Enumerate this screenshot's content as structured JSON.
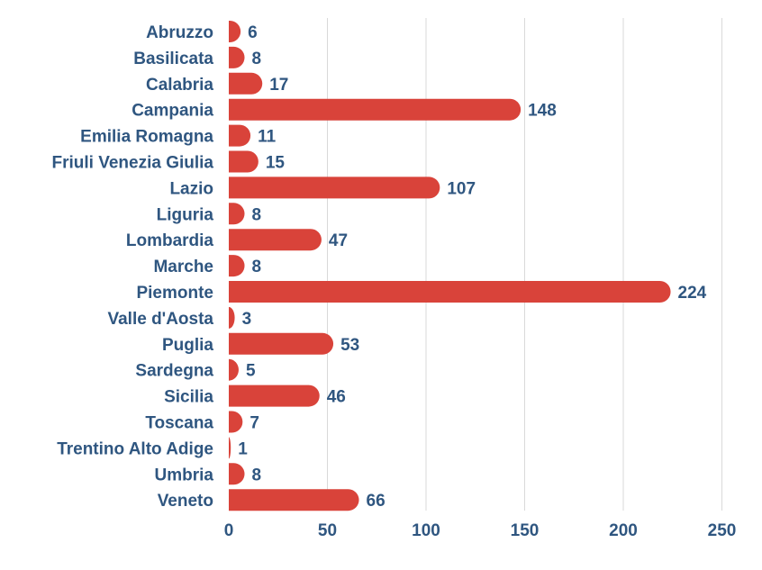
{
  "chart_data": {
    "type": "bar",
    "orientation": "horizontal",
    "categories": [
      "Abruzzo",
      "Basilicata",
      "Calabria",
      "Campania",
      "Emilia Romagna",
      "Friuli Venezia Giulia",
      "Lazio",
      "Liguria",
      "Lombardia",
      "Marche",
      "Piemonte",
      "Valle d'Aosta",
      "Puglia",
      "Sardegna",
      "Sicilia",
      "Toscana",
      "Trentino Alto Adige",
      "Umbria",
      "Veneto"
    ],
    "values": [
      6,
      8,
      17,
      148,
      11,
      15,
      107,
      8,
      47,
      8,
      224,
      3,
      53,
      5,
      46,
      7,
      1,
      8,
      66
    ],
    "value_labels": [
      "6",
      "8",
      "17",
      "148",
      "11",
      "15",
      "107",
      "8",
      "47",
      "8",
      "224",
      "3",
      "53",
      "5",
      "46",
      "7",
      "1",
      "8",
      "66"
    ],
    "xlim": [
      0,
      250
    ],
    "x_ticks": [
      0,
      50,
      100,
      150,
      200,
      250
    ],
    "x_tick_labels": [
      "0",
      "50",
      "100",
      "150",
      "200",
      "250"
    ],
    "title": "",
    "xlabel": "",
    "ylabel": "",
    "grid": "vertical",
    "legend": "none",
    "colors": {
      "bar": "#d9433a",
      "text": "#2f5680",
      "grid": "#d9d9d9"
    }
  }
}
